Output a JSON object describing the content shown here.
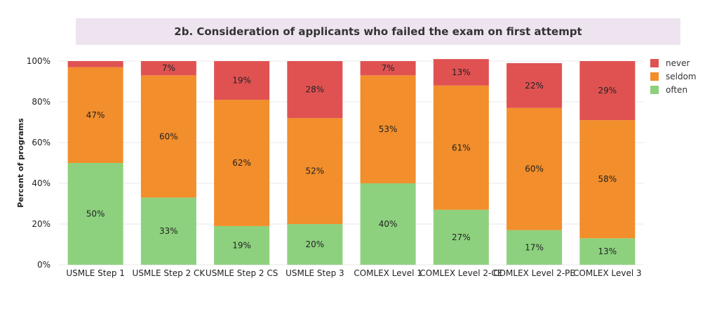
{
  "title": "2b. Consideration of applicants who failed the exam on first attempt",
  "colors": {
    "never": "#e05252",
    "seldom": "#f28e2b",
    "often": "#8dd17e",
    "grid": "#e9e9e9",
    "text": "#222222"
  },
  "chart_data": {
    "type": "bar",
    "stacked": true,
    "title": "2b. Consideration of applicants who failed the exam on first attempt",
    "xlabel": "",
    "ylabel": "Percent of programs",
    "ylim": [
      0,
      100
    ],
    "yticks": [
      "0%",
      "20%",
      "40%",
      "60%",
      "80%",
      "100%"
    ],
    "grid": true,
    "legend_position": "right",
    "categories": [
      "USMLE Step 1",
      "USMLE Step 2 CK",
      "USMLE Step 2 CS",
      "USMLE Step 3",
      "COMLEX Level 1",
      "COMLEX Level 2-CE",
      "COMLEX Level 2-PE",
      "COMLEX Level 3"
    ],
    "series": [
      {
        "name": "often",
        "values": [
          50,
          33,
          19,
          20,
          40,
          27,
          17,
          13
        ],
        "labels": [
          "50%",
          "33%",
          "19%",
          "20%",
          "40%",
          "27%",
          "17%",
          "13%"
        ]
      },
      {
        "name": "seldom",
        "values": [
          47,
          60,
          62,
          52,
          53,
          61,
          60,
          58
        ],
        "labels": [
          "47%",
          "60%",
          "62%",
          "52%",
          "53%",
          "61%",
          "60%",
          "58%"
        ]
      },
      {
        "name": "never",
        "values": [
          3,
          7,
          19,
          28,
          7,
          13,
          22,
          29
        ],
        "labels": [
          "",
          "7%",
          "19%",
          "28%",
          "7%",
          "13%",
          "22%",
          "29%"
        ]
      }
    ],
    "legend": [
      "never",
      "seldom",
      "often"
    ]
  }
}
